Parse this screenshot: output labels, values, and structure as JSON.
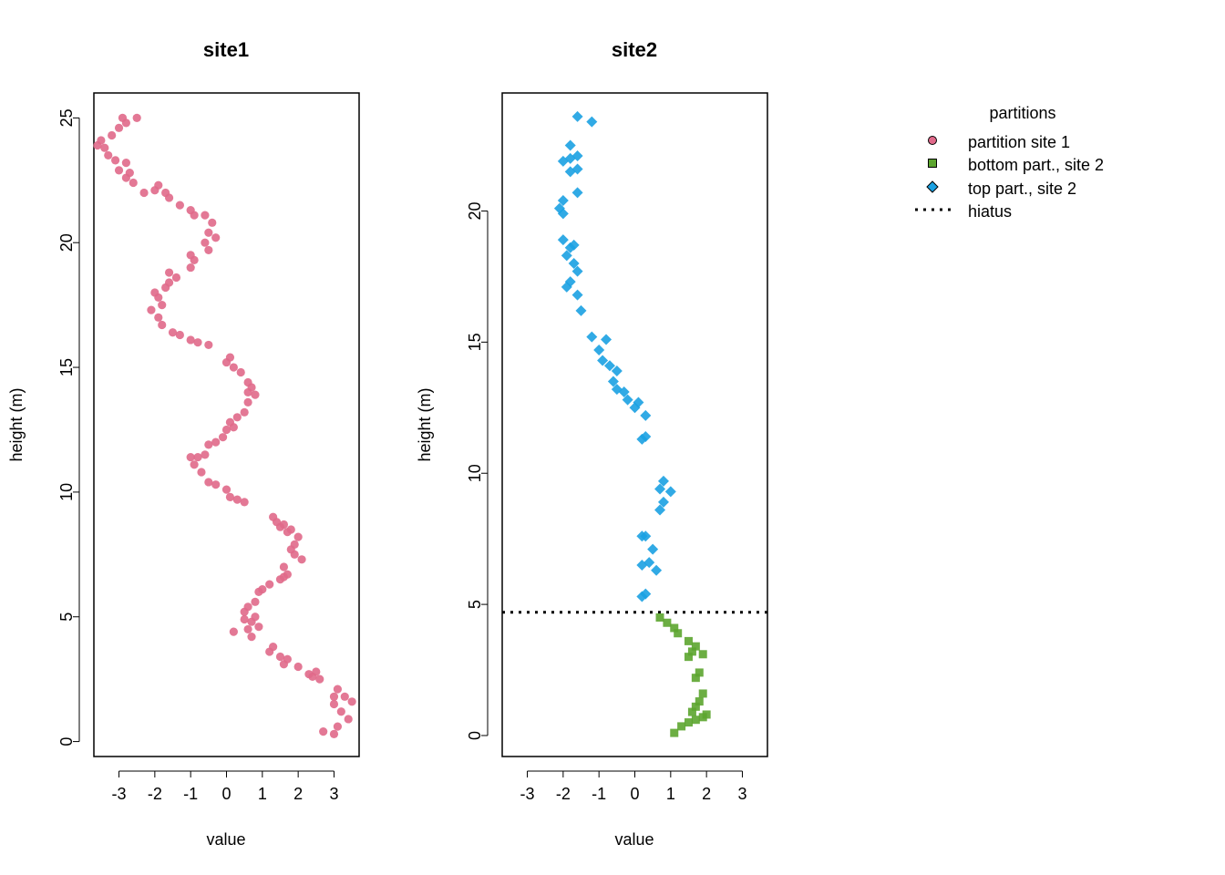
{
  "legend": {
    "title": "partitions",
    "position": "top-right",
    "entries": [
      {
        "label": "partition site 1",
        "symbol": "circle",
        "color": "#e0698a"
      },
      {
        "label": "bottom part., site 2",
        "symbol": "square",
        "color": "#5ca52f"
      },
      {
        "label": "top part., site 2",
        "symbol": "diamond",
        "color": "#1ba1e2"
      },
      {
        "label": "hiatus",
        "symbol": "dotted-line",
        "color": "#000000"
      }
    ]
  },
  "chart_data": [
    {
      "type": "scatter",
      "title": "site1",
      "xlabel": "value",
      "ylabel": "height (m)",
      "xlim": [
        -3.7,
        3.7
      ],
      "ylim": [
        -0.6,
        26.0
      ],
      "xticks": [
        "-3",
        "-2",
        "-1",
        "0",
        "1",
        "2",
        "3"
      ],
      "yticks": [
        "0",
        "5",
        "10",
        "15",
        "20",
        "25"
      ],
      "grid": false,
      "series": [
        {
          "name": "partition site 1",
          "color": "#e0698a",
          "marker": "circle",
          "points": [
            [
              2.7,
              0.4
            ],
            [
              3.0,
              0.3
            ],
            [
              3.1,
              0.6
            ],
            [
              3.4,
              0.9
            ],
            [
              3.2,
              1.2
            ],
            [
              3.0,
              1.5
            ],
            [
              3.5,
              1.6
            ],
            [
              3.0,
              1.8
            ],
            [
              3.3,
              1.8
            ],
            [
              3.1,
              2.1
            ],
            [
              2.6,
              2.5
            ],
            [
              2.4,
              2.6
            ],
            [
              2.3,
              2.7
            ],
            [
              2.5,
              2.8
            ],
            [
              2.0,
              3.0
            ],
            [
              1.6,
              3.1
            ],
            [
              1.7,
              3.3
            ],
            [
              1.5,
              3.4
            ],
            [
              1.2,
              3.6
            ],
            [
              1.3,
              3.8
            ],
            [
              0.7,
              4.2
            ],
            [
              0.2,
              4.4
            ],
            [
              0.6,
              4.5
            ],
            [
              0.9,
              4.6
            ],
            [
              0.7,
              4.8
            ],
            [
              0.5,
              4.9
            ],
            [
              0.8,
              5.0
            ],
            [
              0.5,
              5.2
            ],
            [
              0.6,
              5.4
            ],
            [
              0.8,
              5.6
            ],
            [
              0.9,
              6.0
            ],
            [
              1.0,
              6.1
            ],
            [
              1.2,
              6.3
            ],
            [
              1.5,
              6.5
            ],
            [
              1.6,
              6.6
            ],
            [
              1.7,
              6.7
            ],
            [
              1.6,
              7.0
            ],
            [
              2.1,
              7.3
            ],
            [
              1.9,
              7.5
            ],
            [
              1.8,
              7.7
            ],
            [
              1.9,
              7.9
            ],
            [
              2.0,
              8.2
            ],
            [
              1.7,
              8.4
            ],
            [
              1.8,
              8.5
            ],
            [
              1.5,
              8.6
            ],
            [
              1.6,
              8.7
            ],
            [
              1.4,
              8.8
            ],
            [
              1.3,
              9.0
            ],
            [
              0.5,
              9.6
            ],
            [
              0.3,
              9.7
            ],
            [
              0.1,
              9.8
            ],
            [
              0.0,
              10.1
            ],
            [
              -0.3,
              10.3
            ],
            [
              -0.5,
              10.4
            ],
            [
              -0.7,
              10.8
            ],
            [
              -0.9,
              11.1
            ],
            [
              -0.8,
              11.4
            ],
            [
              -1.0,
              11.4
            ],
            [
              -0.6,
              11.5
            ],
            [
              -0.5,
              11.9
            ],
            [
              -0.3,
              12.0
            ],
            [
              -0.1,
              12.2
            ],
            [
              0.0,
              12.5
            ],
            [
              0.2,
              12.6
            ],
            [
              0.1,
              12.8
            ],
            [
              0.3,
              13.0
            ],
            [
              0.5,
              13.2
            ],
            [
              0.6,
              13.6
            ],
            [
              0.8,
              13.9
            ],
            [
              0.6,
              14.0
            ],
            [
              0.7,
              14.2
            ],
            [
              0.6,
              14.4
            ],
            [
              0.4,
              14.8
            ],
            [
              0.2,
              15.0
            ],
            [
              0.0,
              15.2
            ],
            [
              0.1,
              15.4
            ],
            [
              -0.5,
              15.9
            ],
            [
              -0.8,
              16.0
            ],
            [
              -1.0,
              16.1
            ],
            [
              -1.3,
              16.3
            ],
            [
              -1.5,
              16.4
            ],
            [
              -1.8,
              16.7
            ],
            [
              -1.9,
              17.0
            ],
            [
              -2.1,
              17.3
            ],
            [
              -1.8,
              17.5
            ],
            [
              -1.9,
              17.8
            ],
            [
              -2.0,
              18.0
            ],
            [
              -1.7,
              18.2
            ],
            [
              -1.6,
              18.4
            ],
            [
              -1.4,
              18.6
            ],
            [
              -1.6,
              18.8
            ],
            [
              -1.0,
              19.0
            ],
            [
              -0.9,
              19.3
            ],
            [
              -1.0,
              19.5
            ],
            [
              -0.5,
              19.7
            ],
            [
              -0.6,
              20.0
            ],
            [
              -0.3,
              20.2
            ],
            [
              -0.5,
              20.4
            ],
            [
              -0.4,
              20.8
            ],
            [
              -0.6,
              21.1
            ],
            [
              -0.9,
              21.1
            ],
            [
              -1.0,
              21.3
            ],
            [
              -1.3,
              21.5
            ],
            [
              -1.6,
              21.8
            ],
            [
              -1.7,
              22.0
            ],
            [
              -1.9,
              22.3
            ],
            [
              -2.0,
              22.1
            ],
            [
              -2.3,
              22.0
            ],
            [
              -2.6,
              22.4
            ],
            [
              -2.8,
              22.6
            ],
            [
              -2.7,
              22.8
            ],
            [
              -3.0,
              22.9
            ],
            [
              -2.8,
              23.2
            ],
            [
              -3.1,
              23.3
            ],
            [
              -3.3,
              23.5
            ],
            [
              -3.4,
              23.8
            ],
            [
              -3.6,
              23.9
            ],
            [
              -3.5,
              24.1
            ],
            [
              -3.2,
              24.3
            ],
            [
              -3.0,
              24.6
            ],
            [
              -2.8,
              24.8
            ],
            [
              -2.9,
              25.0
            ],
            [
              -2.5,
              25.0
            ]
          ]
        }
      ]
    },
    {
      "type": "scatter",
      "title": "site2",
      "xlabel": "value",
      "ylabel": "height (m)",
      "xlim": [
        -3.7,
        3.7
      ],
      "ylim": [
        -0.8,
        24.5
      ],
      "xticks": [
        "-3",
        "-2",
        "-1",
        "0",
        "1",
        "2",
        "3"
      ],
      "yticks": [
        "0",
        "5",
        "10",
        "15",
        "20"
      ],
      "grid": false,
      "hiatus": 4.7,
      "series": [
        {
          "name": "bottom part., site 2",
          "color": "#5ca52f",
          "marker": "square",
          "points": [
            [
              1.1,
              0.1
            ],
            [
              1.3,
              0.35
            ],
            [
              1.5,
              0.5
            ],
            [
              1.7,
              0.6
            ],
            [
              1.9,
              0.7
            ],
            [
              2.0,
              0.8
            ],
            [
              1.6,
              0.9
            ],
            [
              1.7,
              1.1
            ],
            [
              1.8,
              1.3
            ],
            [
              1.9,
              1.6
            ],
            [
              1.7,
              2.2
            ],
            [
              1.8,
              2.4
            ],
            [
              1.5,
              3.0
            ],
            [
              1.6,
              3.2
            ],
            [
              1.9,
              3.1
            ],
            [
              1.7,
              3.4
            ],
            [
              1.5,
              3.6
            ],
            [
              1.2,
              3.9
            ],
            [
              1.1,
              4.1
            ],
            [
              0.9,
              4.3
            ],
            [
              0.7,
              4.5
            ]
          ]
        },
        {
          "name": "top part., site 2",
          "color": "#1ba1e2",
          "marker": "diamond",
          "points": [
            [
              0.2,
              5.3
            ],
            [
              0.3,
              5.4
            ],
            [
              0.2,
              6.5
            ],
            [
              0.4,
              6.6
            ],
            [
              0.6,
              6.3
            ],
            [
              0.5,
              7.1
            ],
            [
              0.3,
              7.6
            ],
            [
              0.2,
              7.6
            ],
            [
              0.7,
              8.6
            ],
            [
              0.8,
              8.9
            ],
            [
              1.0,
              9.3
            ],
            [
              0.7,
              9.4
            ],
            [
              0.8,
              9.7
            ],
            [
              0.2,
              11.3
            ],
            [
              0.3,
              11.4
            ],
            [
              0.3,
              12.2
            ],
            [
              0.0,
              12.5
            ],
            [
              0.1,
              12.7
            ],
            [
              -0.2,
              12.8
            ],
            [
              -0.3,
              13.1
            ],
            [
              -0.5,
              13.2
            ],
            [
              -0.6,
              13.5
            ],
            [
              -0.5,
              13.9
            ],
            [
              -0.7,
              14.1
            ],
            [
              -0.9,
              14.3
            ],
            [
              -1.0,
              14.7
            ],
            [
              -0.8,
              15.1
            ],
            [
              -1.2,
              15.2
            ],
            [
              -1.5,
              16.2
            ],
            [
              -1.6,
              16.8
            ],
            [
              -1.8,
              17.3
            ],
            [
              -1.9,
              17.1
            ],
            [
              -1.6,
              17.7
            ],
            [
              -1.7,
              18.0
            ],
            [
              -1.9,
              18.3
            ],
            [
              -1.8,
              18.6
            ],
            [
              -1.7,
              18.7
            ],
            [
              -2.0,
              18.9
            ],
            [
              -2.0,
              19.9
            ],
            [
              -2.1,
              20.1
            ],
            [
              -2.0,
              20.4
            ],
            [
              -1.6,
              20.7
            ],
            [
              -1.8,
              21.5
            ],
            [
              -1.6,
              21.6
            ],
            [
              -1.8,
              22.0
            ],
            [
              -2.0,
              21.9
            ],
            [
              -1.6,
              22.1
            ],
            [
              -1.8,
              22.5
            ],
            [
              -1.2,
              23.4
            ],
            [
              -1.6,
              23.6
            ]
          ]
        }
      ]
    }
  ]
}
